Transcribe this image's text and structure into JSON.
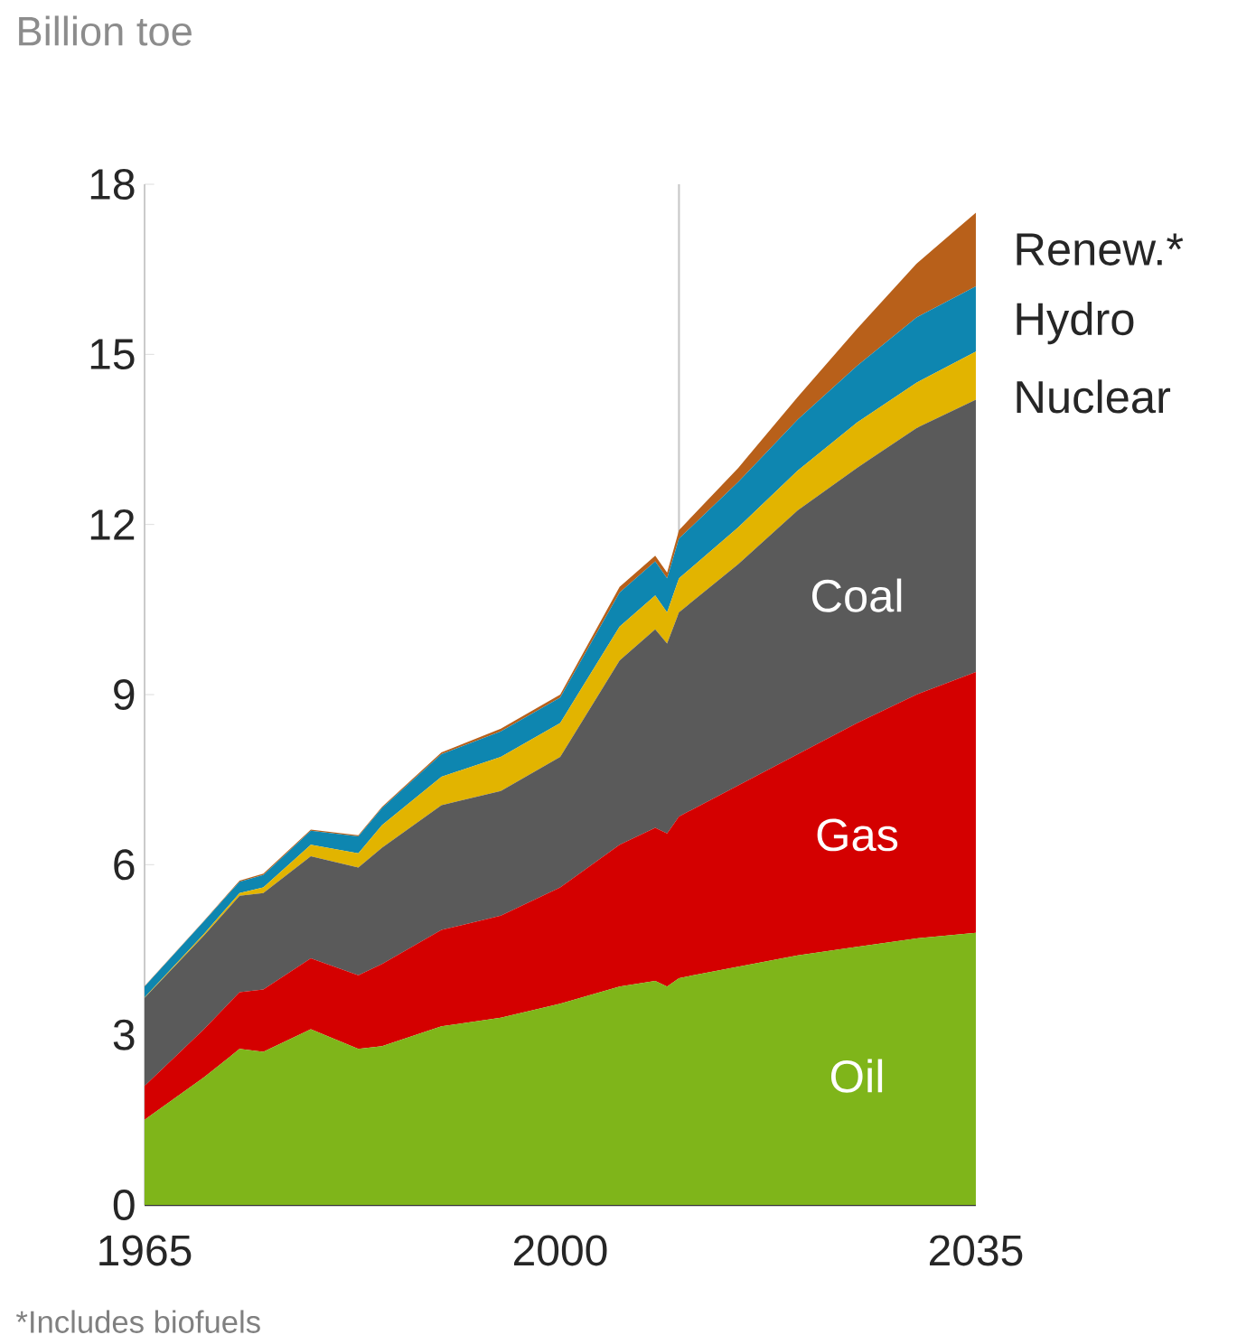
{
  "chart_data": {
    "type": "area",
    "stacked": true,
    "ylabel": "Billion toe",
    "x": [
      1965,
      1970,
      1973,
      1975,
      1979,
      1983,
      1985,
      1990,
      1995,
      2000,
      2005,
      2008,
      2009,
      2010,
      2015,
      2020,
      2025,
      2030,
      2035
    ],
    "series": [
      {
        "name": "Oil",
        "color": "#7fb51a",
        "values": [
          1.5,
          2.25,
          2.75,
          2.7,
          3.1,
          2.75,
          2.8,
          3.15,
          3.3,
          3.55,
          3.85,
          3.95,
          3.85,
          4.0,
          4.2,
          4.4,
          4.55,
          4.7,
          4.8
        ]
      },
      {
        "name": "Gas",
        "color": "#d40000",
        "values": [
          0.6,
          0.85,
          1.0,
          1.1,
          1.25,
          1.3,
          1.45,
          1.7,
          1.8,
          2.05,
          2.5,
          2.7,
          2.7,
          2.85,
          3.2,
          3.55,
          3.95,
          4.3,
          4.6
        ]
      },
      {
        "name": "Coal",
        "color": "#5a5a5a",
        "values": [
          1.55,
          1.65,
          1.7,
          1.7,
          1.8,
          1.9,
          2.05,
          2.2,
          2.2,
          2.3,
          3.25,
          3.5,
          3.35,
          3.6,
          3.9,
          4.3,
          4.5,
          4.7,
          4.8
        ]
      },
      {
        "name": "Nuclear",
        "color": "#e2b400",
        "values": [
          0.01,
          0.03,
          0.05,
          0.1,
          0.2,
          0.25,
          0.4,
          0.5,
          0.6,
          0.6,
          0.6,
          0.6,
          0.55,
          0.6,
          0.65,
          0.7,
          0.8,
          0.8,
          0.85
        ]
      },
      {
        "name": "Hydro",
        "color": "#0e86b0",
        "values": [
          0.19,
          0.22,
          0.2,
          0.22,
          0.25,
          0.3,
          0.3,
          0.4,
          0.45,
          0.45,
          0.6,
          0.6,
          0.6,
          0.7,
          0.8,
          0.9,
          1.0,
          1.15,
          1.15
        ]
      },
      {
        "name": "Renew.*",
        "color": "#b8601a",
        "values": [
          0.01,
          0.01,
          0.02,
          0.02,
          0.02,
          0.02,
          0.02,
          0.03,
          0.05,
          0.05,
          0.1,
          0.1,
          0.1,
          0.15,
          0.25,
          0.4,
          0.65,
          0.95,
          1.3
        ]
      }
    ],
    "xlim": [
      1965,
      2035
    ],
    "xticks": [
      1965,
      2000,
      2035
    ],
    "ylim": [
      0,
      18
    ],
    "yticks": [
      0,
      3,
      6,
      9,
      12,
      15,
      18
    ],
    "ref_lines": [
      {
        "axis": "x",
        "value": 2010,
        "color": "#c8c8c8"
      }
    ],
    "grid": false,
    "annotations": [
      "*Includes biofuels"
    ]
  }
}
